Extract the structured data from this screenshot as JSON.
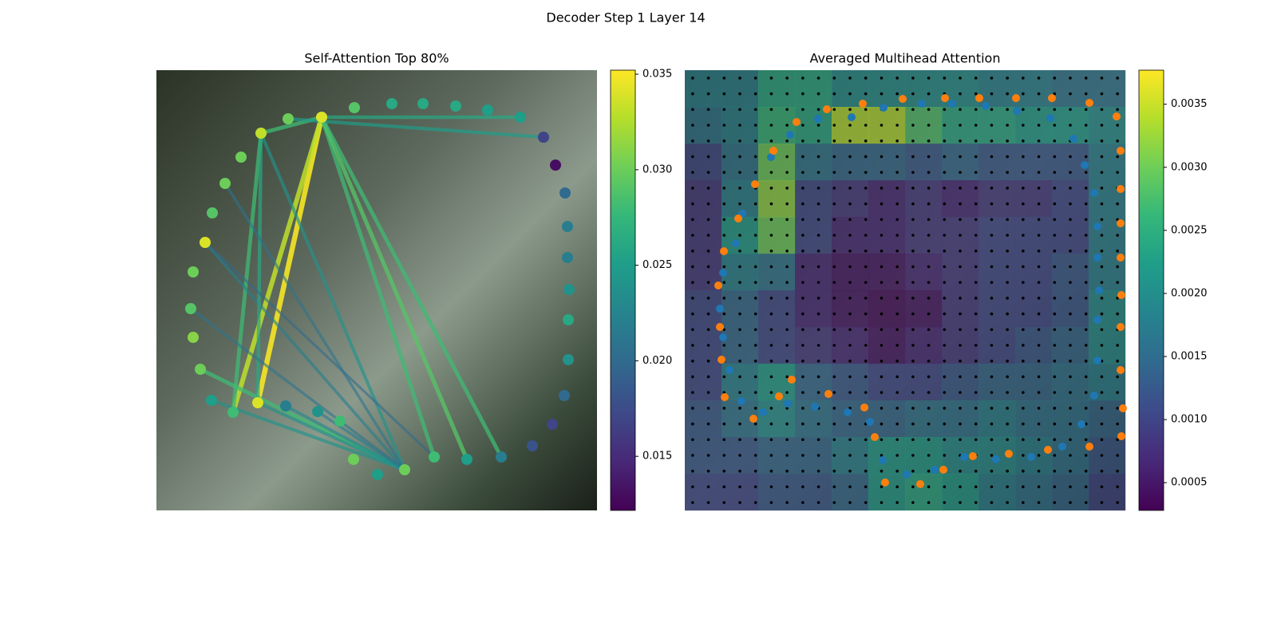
{
  "title": "Decoder Step 1 Layer 14",
  "chart_data": [
    {
      "type": "graph",
      "title": "Self-Attention Top 80%",
      "xlim": [
        0,
        552
      ],
      "ylim": [
        552,
        0
      ],
      "nodes": {
        "x": [
          207,
          165,
          248,
          295,
          334,
          375,
          415,
          456,
          485,
          500,
          512,
          515,
          515,
          517,
          516,
          516,
          511,
          496,
          471,
          432,
          389,
          348,
          311,
          277,
          247,
          230,
          202,
          162,
          127,
          96,
          69,
          55,
          46,
          43,
          46,
          61,
          70,
          86,
          106,
          131
        ],
        "y": [
          59,
          61,
          47,
          42,
          42,
          45,
          50,
          59,
          84,
          119,
          154,
          196,
          235,
          275,
          313,
          363,
          408,
          444,
          471,
          485,
          488,
          485,
          501,
          507,
          488,
          440,
          428,
          421,
          417,
          429,
          414,
          375,
          335,
          299,
          253,
          216,
          179,
          142,
          109,
          79
        ],
        "values": [
          0.034,
          0.03,
          0.029,
          0.026,
          0.026,
          0.026,
          0.025,
          0.025,
          0.017,
          0.013,
          0.02,
          0.022,
          0.022,
          0.024,
          0.026,
          0.024,
          0.02,
          0.017,
          0.018,
          0.022,
          0.025,
          0.028,
          0.03,
          0.025,
          0.03,
          0.028,
          0.024,
          0.022,
          0.034,
          0.028,
          0.025,
          0.03,
          0.031,
          0.029,
          0.03,
          0.034,
          0.029,
          0.03,
          0.03,
          0.033
        ]
      },
      "edges": [
        [
          0,
          28
        ],
        [
          0,
          29
        ],
        [
          0,
          21
        ],
        [
          0,
          20
        ],
        [
          0,
          19
        ],
        [
          39,
          29
        ],
        [
          39,
          22
        ],
        [
          39,
          0
        ],
        [
          0,
          7
        ],
        [
          8,
          1
        ],
        [
          31,
          22
        ],
        [
          30,
          22
        ],
        [
          28,
          22
        ],
        [
          27,
          22
        ],
        [
          26,
          22
        ],
        [
          35,
          22
        ],
        [
          39,
          28
        ],
        [
          33,
          22
        ],
        [
          35,
          21
        ],
        [
          37,
          22
        ]
      ],
      "edge_values": [
        0.035,
        0.033,
        0.028,
        0.029,
        0.028,
        0.028,
        0.024,
        0.028,
        0.026,
        0.025,
        0.028,
        0.024,
        0.024,
        0.023,
        0.022,
        0.022,
        0.026,
        0.021,
        0.02,
        0.021
      ],
      "clim": [
        0.01217,
        0.03521
      ],
      "cticks": [
        0.015,
        {
          "value": 0.02,
          "label": "0.020"
        },
        0.025,
        {
          "value": 0.03,
          "label": "0.030"
        },
        0.035
      ]
    },
    {
      "type": "heatmap",
      "title": "Averaged Multihead Attention",
      "xlim": [
        0,
        552
      ],
      "ylim": [
        552,
        0
      ],
      "values": [
        [
          0.0018,
          0.0018,
          0.0024,
          0.0024,
          0.002,
          0.002,
          0.002,
          0.002,
          0.0018,
          0.0018,
          0.0016,
          0.0016
        ],
        [
          0.0016,
          0.0018,
          0.0026,
          0.0024,
          0.0034,
          0.0034,
          0.0028,
          0.0024,
          0.0024,
          0.0022,
          0.0022,
          0.002
        ],
        [
          0.001,
          0.0016,
          0.003,
          0.0016,
          0.0014,
          0.0014,
          0.0012,
          0.0014,
          0.0012,
          0.0012,
          0.0012,
          0.0018
        ],
        [
          0.0008,
          0.0018,
          0.0032,
          0.001,
          0.0008,
          0.0006,
          0.0008,
          0.0006,
          0.0008,
          0.0008,
          0.001,
          0.0018
        ],
        [
          0.0008,
          0.0022,
          0.003,
          0.001,
          0.0006,
          0.0006,
          0.0008,
          0.0008,
          0.001,
          0.001,
          0.001,
          0.0018
        ],
        [
          0.0008,
          0.0018,
          0.0016,
          0.0006,
          0.0004,
          0.0004,
          0.0006,
          0.0008,
          0.001,
          0.001,
          0.0012,
          0.0018
        ],
        [
          0.001,
          0.0014,
          0.001,
          0.0006,
          0.0004,
          0.0003,
          0.0004,
          0.0008,
          0.001,
          0.001,
          0.0012,
          0.002
        ],
        [
          0.001,
          0.0014,
          0.001,
          0.0008,
          0.0006,
          0.0004,
          0.0006,
          0.0008,
          0.001,
          0.0012,
          0.0014,
          0.002
        ],
        [
          0.001,
          0.0018,
          0.0022,
          0.0014,
          0.0012,
          0.001,
          0.001,
          0.0012,
          0.0014,
          0.0014,
          0.0016,
          0.0018
        ],
        [
          0.0012,
          0.0016,
          0.002,
          0.0016,
          0.0014,
          0.0014,
          0.0016,
          0.0016,
          0.0018,
          0.0016,
          0.0016,
          0.0014
        ],
        [
          0.0012,
          0.0012,
          0.0014,
          0.0014,
          0.0018,
          0.0022,
          0.0022,
          0.002,
          0.002,
          0.0018,
          0.0016,
          0.0012
        ],
        [
          0.001,
          0.001,
          0.0012,
          0.0012,
          0.0014,
          0.0022,
          0.0024,
          0.0022,
          0.0018,
          0.0016,
          0.0014,
          0.001
        ]
      ],
      "points": [
        {
          "color": "#1f77b4",
          "x": [
            72,
            64,
            48,
            44,
            48,
            56,
            71,
            98,
            129,
            163,
            204,
            232,
            248,
            278,
            313,
            350,
            390,
            434,
            473,
            497,
            513,
            517,
            517,
            519,
            517,
            517,
            513,
            501,
            487,
            458,
            416,
            377,
            335,
            297,
            249,
            209,
            167,
            132,
            108
          ],
          "y": [
            180,
            217,
            254,
            299,
            335,
            376,
            415,
            429,
            418,
            422,
            429,
            441,
            489,
            507,
            501,
            485,
            488,
            485,
            472,
            444,
            408,
            364,
            313,
            276,
            235,
            196,
            154,
            119,
            86,
            60,
            51,
            45,
            42,
            42,
            47,
            59,
            61,
            81,
            109
          ]
        },
        {
          "color": "#ff7f0e",
          "x": [
            178,
            223,
            273,
            326,
            369,
            415,
            460,
            507,
            541,
            546,
            546,
            546,
            546,
            547,
            546,
            546,
            549,
            547,
            507,
            455,
            406,
            361,
            324,
            295,
            251,
            238,
            225,
            180,
            134,
            118,
            86,
            50,
            46,
            44,
            42,
            49,
            67,
            88,
            111,
            140
          ],
          "y": [
            49,
            42,
            36,
            35,
            35,
            35,
            35,
            41,
            58,
            101,
            149,
            192,
            235,
            282,
            322,
            376,
            424,
            459,
            472,
            476,
            481,
            484,
            501,
            519,
            517,
            460,
            423,
            406,
            388,
            409,
            437,
            410,
            363,
            322,
            270,
            227,
            186,
            143,
            101,
            65
          ]
        }
      ],
      "clim": [
        0.00028,
        0.00377
      ],
      "cticks": [
        0.0005,
        {
          "value": 0.001,
          "label": "0.0010"
        },
        0.0015,
        {
          "value": 0.002,
          "label": "0.0020"
        },
        0.0025,
        {
          "value": 0.003,
          "label": "0.0030"
        },
        0.0035
      ]
    }
  ]
}
